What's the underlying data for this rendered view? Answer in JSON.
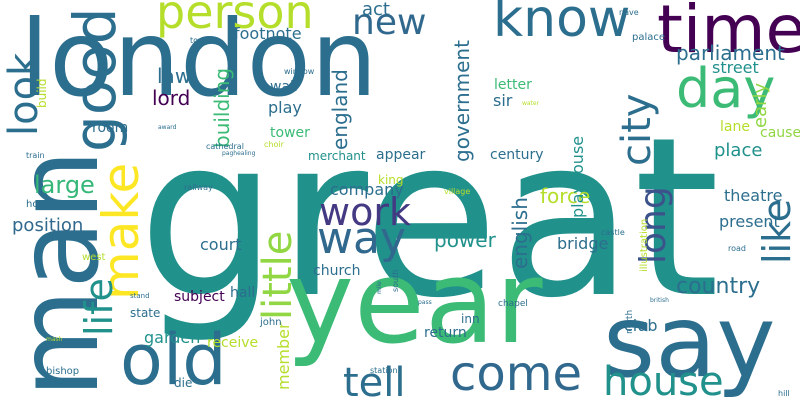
{
  "words": [
    {
      "text": "london",
      "color": "#2c6e8e"
    },
    {
      "text": "great",
      "color": "#21918c"
    },
    {
      "text": "year",
      "color": "#3bbb75"
    },
    {
      "text": "man",
      "color": "#2c6e8e"
    },
    {
      "text": "say",
      "color": "#2c6e8e"
    },
    {
      "text": "time",
      "color": "#440154"
    },
    {
      "text": "know",
      "color": "#2c6e8e"
    },
    {
      "text": "person",
      "color": "#b5de2b"
    },
    {
      "text": "good",
      "color": "#2c6e8e"
    },
    {
      "text": "look",
      "color": "#2c6e8e"
    },
    {
      "text": "day",
      "color": "#3bbb75"
    },
    {
      "text": "old",
      "color": "#2c6e8e"
    },
    {
      "text": "make",
      "color": "#fde725"
    },
    {
      "text": "way",
      "color": "#31688e"
    },
    {
      "text": "work",
      "color": "#443983"
    },
    {
      "text": "come",
      "color": "#31688e"
    },
    {
      "text": "tell",
      "color": "#2c6e8e"
    },
    {
      "text": "house",
      "color": "#21918c"
    },
    {
      "text": "life",
      "color": "#21918c"
    },
    {
      "text": "little",
      "color": "#90d743"
    },
    {
      "text": "city",
      "color": "#2c6e8e"
    },
    {
      "text": "like",
      "color": "#2c6e8e"
    },
    {
      "text": "long",
      "color": "#3b528b"
    },
    {
      "text": "new",
      "color": "#31688e"
    },
    {
      "text": "large",
      "color": "#35b779"
    },
    {
      "text": "country",
      "color": "#2c6e8e"
    },
    {
      "text": "parliament",
      "color": "#2c6e8e"
    },
    {
      "text": "government",
      "color": "#2c6e8e"
    },
    {
      "text": "england",
      "color": "#2c6e8e"
    },
    {
      "text": "english",
      "color": "#2c6e8e"
    },
    {
      "text": "force",
      "color": "#b5de2b"
    },
    {
      "text": "power",
      "color": "#21918c"
    },
    {
      "text": "position",
      "color": "#31688e"
    },
    {
      "text": "law",
      "color": "#2c6e8e"
    },
    {
      "text": "lord",
      "color": "#440154"
    },
    {
      "text": "act",
      "color": "#2c6e8e"
    },
    {
      "text": "footnote",
      "color": "#2c6e8e"
    },
    {
      "text": "company",
      "color": "#2c6e8e"
    },
    {
      "text": "court",
      "color": "#2c6e8e"
    },
    {
      "text": "church",
      "color": "#2c6e8e"
    },
    {
      "text": "building",
      "color": "#3bbb75"
    },
    {
      "text": "play",
      "color": "#2c6e8e"
    },
    {
      "text": "wall",
      "color": "#2c6e8e"
    },
    {
      "text": "tower",
      "color": "#3bbb75"
    },
    {
      "text": "street",
      "color": "#21918c"
    },
    {
      "text": "early",
      "color": "#90d743"
    },
    {
      "text": "lane",
      "color": "#b5de2b"
    },
    {
      "text": "cause",
      "color": "#90d743"
    },
    {
      "text": "place",
      "color": "#21918c"
    },
    {
      "text": "theatre",
      "color": "#2c6e8e"
    },
    {
      "text": "present",
      "color": "#2c6e8e"
    },
    {
      "text": "bridge",
      "color": "#2c6e8e"
    },
    {
      "text": "sir",
      "color": "#2c6e8e"
    },
    {
      "text": "letter",
      "color": "#3bbb75"
    },
    {
      "text": "playhouse",
      "color": "#21918c"
    },
    {
      "text": "century",
      "color": "#2c6e8e"
    },
    {
      "text": "appear",
      "color": "#2c6e8e"
    },
    {
      "text": "merchant",
      "color": "#21918c"
    },
    {
      "text": "king",
      "color": "#b5de2b"
    },
    {
      "text": "room",
      "color": "#2c6e8e"
    },
    {
      "text": "subject",
      "color": "#440154"
    },
    {
      "text": "garden",
      "color": "#21918c"
    },
    {
      "text": "receive",
      "color": "#b5de2b"
    },
    {
      "text": "state",
      "color": "#2c6e8e"
    },
    {
      "text": "hall",
      "color": "#2c6e8e"
    },
    {
      "text": "member",
      "color": "#b5de2b"
    },
    {
      "text": "return",
      "color": "#2c6e8e"
    },
    {
      "text": "club",
      "color": "#2c6e8e"
    },
    {
      "text": "inn",
      "color": "#2c6e8e"
    },
    {
      "text": "bishop",
      "color": "#2c6e8e"
    },
    {
      "text": "die",
      "color": "#2c6e8e"
    },
    {
      "text": "john",
      "color": "#2c6e8e"
    },
    {
      "text": "build",
      "color": "#b5de2b"
    },
    {
      "text": "west",
      "color": "#b5de2b"
    },
    {
      "text": "hotel",
      "color": "#2c6e8e"
    },
    {
      "text": "train",
      "color": "#2c6e8e"
    },
    {
      "text": "cathedral",
      "color": "#2c6e8e"
    },
    {
      "text": "choir",
      "color": "#b5de2b"
    },
    {
      "text": "window",
      "color": "#2c6e8e"
    },
    {
      "text": "town",
      "color": "#2c6e8e"
    },
    {
      "text": "palace",
      "color": "#2c6e8e"
    },
    {
      "text": "nave",
      "color": "#2c6e8e"
    },
    {
      "text": "railway",
      "color": "#2c6e8e"
    },
    {
      "text": "village",
      "color": "#b5de2b"
    },
    {
      "text": "castle",
      "color": "#2c6e8e"
    },
    {
      "text": "road",
      "color": "#2c6e8e"
    },
    {
      "text": "illustration",
      "color": "#b5de2b"
    },
    {
      "text": "north",
      "color": "#2c6e8e"
    },
    {
      "text": "south",
      "color": "#2c6e8e"
    },
    {
      "text": "chapel",
      "color": "#2c6e8e"
    },
    {
      "text": "station",
      "color": "#2c6e8e"
    },
    {
      "text": "hill",
      "color": "#2c6e8e"
    },
    {
      "text": "stand",
      "color": "#2c6e8e"
    },
    {
      "text": "award",
      "color": "#2c6e8e"
    },
    {
      "text": "paghealing",
      "color": "#2c6e8e"
    },
    {
      "text": "water",
      "color": "#b5de2b"
    },
    {
      "text": "mile",
      "color": "#2c6e8e"
    },
    {
      "text": "pass",
      "color": "#2c6e8e"
    },
    {
      "text": "mash",
      "color": "#b5de2b"
    },
    {
      "text": "british",
      "color": "#2c6e8e"
    }
  ]
}
